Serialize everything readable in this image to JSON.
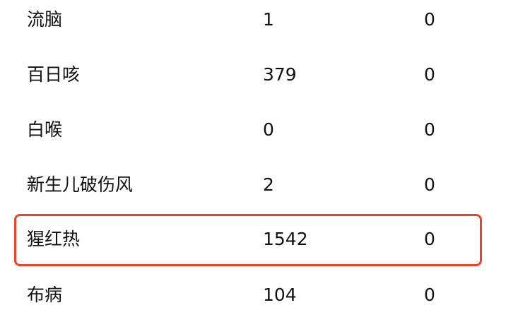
{
  "highlight_color": "#e8452c",
  "highlighted_row": 4,
  "rows": [
    {
      "name": "流脑",
      "cases": "1",
      "deaths": "0"
    },
    {
      "name": "百日咳",
      "cases": "379",
      "deaths": "0"
    },
    {
      "name": "白喉",
      "cases": "0",
      "deaths": "0"
    },
    {
      "name": "新生儿破伤风",
      "cases": "2",
      "deaths": "0"
    },
    {
      "name": "猩红热",
      "cases": "1542",
      "deaths": "0"
    },
    {
      "name": "布病",
      "cases": "104",
      "deaths": "0"
    }
  ]
}
